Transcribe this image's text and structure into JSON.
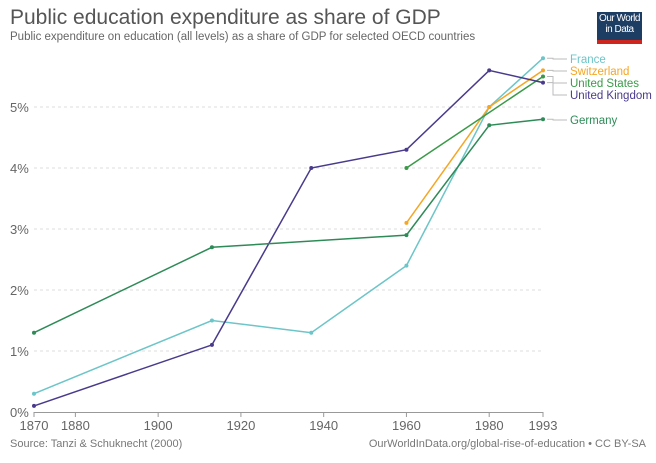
{
  "header": {
    "title": "Public education expenditure as share of GDP",
    "subtitle": "Public expenditure on education (all levels) as a share of GDP for selected OECD countries",
    "logo_text": "Our World in Data"
  },
  "footer": {
    "source": "Source: Tanzi & Schuknecht (2000)",
    "license": "OurWorldInData.org/global-rise-of-education • CC BY-SA"
  },
  "chart_data": {
    "type": "line",
    "title": "Public education expenditure as share of GDP",
    "xlim": [
      1870,
      1993
    ],
    "ylim": [
      0,
      5.8
    ],
    "x_ticks": [
      "1870",
      "1880",
      "1900",
      "1920",
      "1940",
      "1960",
      "1980",
      "1993"
    ],
    "x_tick_values": [
      1870,
      1880,
      1900,
      1920,
      1940,
      1960,
      1980,
      1993
    ],
    "y_ticks": [
      "0%",
      "1%",
      "2%",
      "3%",
      "4%",
      "5%"
    ],
    "y_tick_values": [
      0,
      1,
      2,
      3,
      4,
      5
    ],
    "grid": "horizontal dashed",
    "legend": "right, labels at line ends",
    "series": [
      {
        "name": "France",
        "color": "#6cc5c8",
        "x": [
          1870,
          1913,
          1937,
          1960,
          1980,
          1993
        ],
        "y": [
          0.3,
          1.5,
          1.3,
          2.4,
          5.0,
          5.8
        ]
      },
      {
        "name": "Switzerland",
        "color": "#f5a623",
        "x": [
          1960,
          1980,
          1993
        ],
        "y": [
          3.1,
          5.0,
          5.6
        ]
      },
      {
        "name": "United States",
        "color": "#3a9a48",
        "x": [
          1960,
          1993
        ],
        "y": [
          4.0,
          5.5
        ]
      },
      {
        "name": "United Kingdom",
        "color": "#4a3a8c",
        "x": [
          1870,
          1913,
          1937,
          1960,
          1980,
          1993
        ],
        "y": [
          0.1,
          1.1,
          4.0,
          4.3,
          5.6,
          5.4
        ]
      },
      {
        "name": "Germany",
        "color": "#2e8b57",
        "x": [
          1870,
          1913,
          1960,
          1980,
          1993
        ],
        "y": [
          1.3,
          2.7,
          2.9,
          4.7,
          4.8
        ]
      }
    ]
  }
}
